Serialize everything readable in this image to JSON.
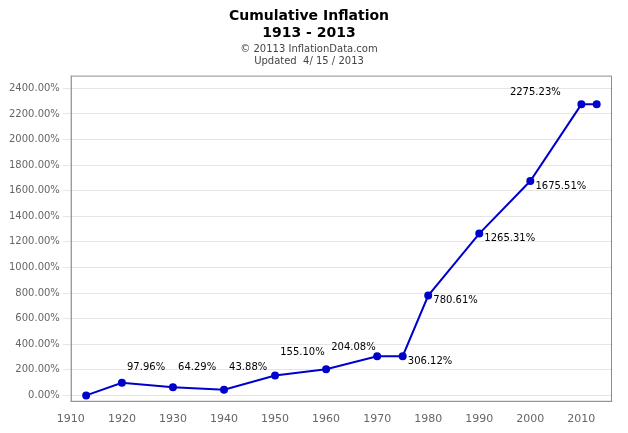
{
  "chart_data": {
    "type": "line",
    "title": [
      "Cumulative Inflation",
      "1913 - 2013"
    ],
    "subtitle": [
      "© 20113 InflationData.com",
      "Updated  4/ 15 / 2013"
    ],
    "x": [
      1913,
      1920,
      1930,
      1940,
      1950,
      1960,
      1970,
      1975,
      1980,
      1990,
      2000,
      2010,
      2013
    ],
    "values": [
      0.0,
      97.96,
      64.29,
      43.88,
      155.1,
      204.08,
      306.12,
      306.12,
      780.61,
      1265.31,
      1675.51,
      2275.23,
      2275.23
    ],
    "color": "#0000CC",
    "marker": "circle",
    "xlim": [
      1910,
      2016
    ],
    "ylim": [
      -50,
      2500
    ],
    "xticks": [
      1910,
      1920,
      1930,
      1940,
      1950,
      1960,
      1970,
      1980,
      1990,
      2000,
      2010
    ],
    "yticks": [
      {
        "value": 0,
        "label": "0.00%"
      },
      {
        "value": 200,
        "label": "200.00%"
      },
      {
        "value": 400,
        "label": "400.00%"
      },
      {
        "value": 600,
        "label": "600.00%"
      },
      {
        "value": 800,
        "label": "800.00%"
      },
      {
        "value": 1000,
        "label": "1000.00%"
      },
      {
        "value": 1200,
        "label": "1200.00%"
      },
      {
        "value": 1400,
        "label": "1400.00%"
      },
      {
        "value": 1600,
        "label": "1600.00%"
      },
      {
        "value": 1800,
        "label": "1800.00%"
      },
      {
        "value": 2000,
        "label": "2000.00%"
      },
      {
        "value": 2200,
        "label": "2200.00%"
      },
      {
        "value": 2400,
        "label": "2400.00%"
      }
    ],
    "grid": "y",
    "annotations": [
      {
        "x": 1921,
        "y": 180,
        "label": "97.96%"
      },
      {
        "x": 1931,
        "y": 180,
        "label": "64.29%"
      },
      {
        "x": 1941,
        "y": 180,
        "label": "43.88%"
      },
      {
        "x": 1951,
        "y": 300,
        "label": "155.10%"
      },
      {
        "x": 1961,
        "y": 340,
        "label": "204.08%"
      },
      {
        "x": 1976,
        "y": 230,
        "label": "306.12%"
      },
      {
        "x": 1981,
        "y": 700,
        "label": "780.61%"
      },
      {
        "x": 1991,
        "y": 1185,
        "label": "1265.31%"
      },
      {
        "x": 2001,
        "y": 1595,
        "label": "1675.51%"
      },
      {
        "x": 1996,
        "y": 2330,
        "label": "2275.23%"
      }
    ]
  }
}
